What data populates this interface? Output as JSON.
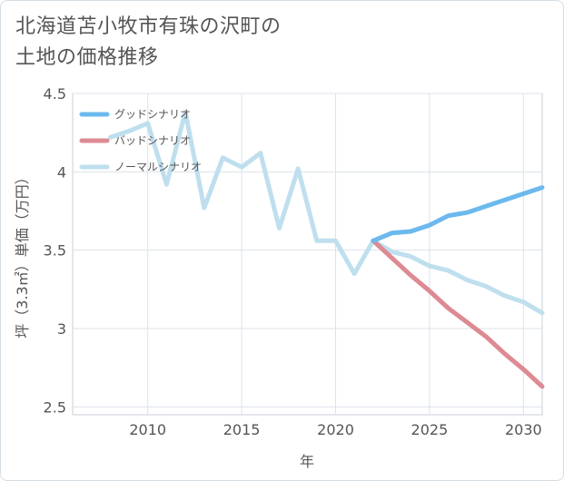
{
  "title": "北海道苫小牧市有珠の沢町の\n土地の価格推移",
  "chart_data": {
    "type": "line",
    "title": "北海道苫小牧市有珠の沢町の土地の価格推移",
    "xlabel": "年",
    "ylabel": "坪（3.3㎡）単価（万円）",
    "xlim": [
      2006,
      2031
    ],
    "ylim": [
      2.45,
      4.5
    ],
    "x_ticks": [
      2010,
      2015,
      2020,
      2025,
      2030
    ],
    "y_ticks": [
      2.5,
      3,
      3.5,
      4,
      4.5
    ],
    "y_tick_labels": [
      "2.5",
      "3",
      "3.5",
      "4",
      "4.5"
    ],
    "grid": true,
    "legend_position": "top-left",
    "series": [
      {
        "name": "グッドシナリオ",
        "color": "#6cb9ed",
        "x": [
          2022,
          2023,
          2024,
          2025,
          2026,
          2027,
          2028,
          2029,
          2030,
          2031
        ],
        "y": [
          3.56,
          3.61,
          3.62,
          3.66,
          3.72,
          3.74,
          3.78,
          3.82,
          3.86,
          3.9
        ]
      },
      {
        "name": "バッドシナリオ",
        "color": "#dd8a92",
        "x": [
          2022,
          2023,
          2024,
          2025,
          2026,
          2027,
          2028,
          2029,
          2030,
          2031
        ],
        "y": [
          3.56,
          3.45,
          3.34,
          3.24,
          3.13,
          3.04,
          2.95,
          2.84,
          2.74,
          2.63
        ]
      },
      {
        "name": "ノーマルシナリオ",
        "color": "#bfdfee",
        "x": [
          2008,
          2009,
          2010,
          2011,
          2012,
          2013,
          2014,
          2015,
          2016,
          2017,
          2018,
          2019,
          2020,
          2021,
          2022,
          2023,
          2024,
          2025,
          2026,
          2027,
          2028,
          2029,
          2030,
          2031
        ],
        "y": [
          4.22,
          4.26,
          4.31,
          3.92,
          4.38,
          3.77,
          4.09,
          4.03,
          4.12,
          3.64,
          4.02,
          3.56,
          3.56,
          3.35,
          3.56,
          3.49,
          3.46,
          3.4,
          3.37,
          3.31,
          3.27,
          3.21,
          3.17,
          3.1
        ]
      }
    ]
  }
}
